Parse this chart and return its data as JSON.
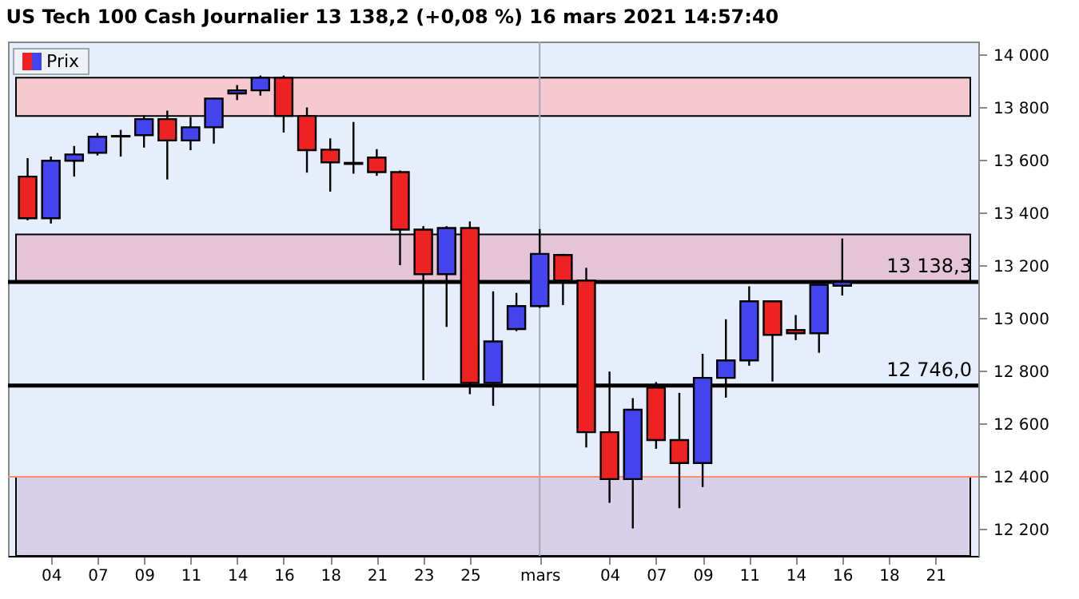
{
  "chart_data": {
    "type": "candlestick",
    "title": "US Tech 100 Cash Journalier 13 138,2 (+0,08 %) 16 mars 2021 14:57:40",
    "categories": [
      null,
      "04",
      null,
      "07",
      null,
      "09",
      null,
      "11",
      null,
      "14",
      null,
      "16",
      null,
      "18",
      null,
      "21",
      null,
      "23",
      null,
      "25",
      null,
      null,
      "mars",
      null,
      null,
      "04",
      null,
      "07",
      null,
      "09",
      null,
      "11",
      null,
      "14",
      null,
      "16",
      null,
      "18",
      null,
      "21",
      null
    ],
    "series": [
      {
        "name": "Prix",
        "ohlc": [
          [
            13538,
            13608,
            13372,
            13380
          ],
          [
            13380,
            13614,
            13360,
            13598
          ],
          [
            13598,
            13654,
            13538,
            13622
          ],
          [
            13628,
            13703,
            13618,
            13689
          ],
          [
            13690,
            13715,
            13614,
            13692
          ],
          [
            13695,
            13770,
            13648,
            13756
          ],
          [
            13756,
            13788,
            13527,
            13675
          ],
          [
            13675,
            13764,
            13638,
            13725
          ],
          [
            13725,
            13836,
            13663,
            13834
          ],
          [
            13853,
            13885,
            13828,
            13865
          ],
          [
            13865,
            13921,
            13845,
            13913
          ],
          [
            13913,
            13921,
            13705,
            13768
          ],
          [
            13768,
            13800,
            13553,
            13638
          ],
          [
            13640,
            13683,
            13481,
            13592
          ],
          [
            13590,
            13745,
            13549,
            13586
          ],
          [
            13610,
            13642,
            13541,
            13555
          ],
          [
            13555,
            13561,
            13202,
            13337
          ],
          [
            13337,
            13350,
            12766,
            13168
          ],
          [
            13168,
            13350,
            12968,
            13343
          ],
          [
            13343,
            13368,
            12713,
            12756
          ],
          [
            12756,
            13103,
            12669,
            12913
          ],
          [
            12960,
            13097,
            12952,
            13047
          ],
          [
            13047,
            13339,
            13040,
            13245
          ],
          [
            13241,
            13245,
            13051,
            13144
          ],
          [
            13144,
            13192,
            12511,
            12569
          ],
          [
            12569,
            12799,
            12301,
            12391
          ],
          [
            12391,
            12698,
            12204,
            12654
          ],
          [
            12738,
            12759,
            12506,
            12539
          ],
          [
            12539,
            12718,
            12281,
            12452
          ],
          [
            12452,
            12866,
            12361,
            12775
          ],
          [
            12775,
            12997,
            12700,
            12841
          ],
          [
            12841,
            13122,
            12821,
            13065
          ],
          [
            13065,
            13067,
            12761,
            12938
          ],
          [
            12956,
            13013,
            12918,
            12944
          ],
          [
            12944,
            13130,
            12870,
            13128
          ],
          [
            13124,
            13303,
            13087,
            13138.3
          ],
          null,
          null,
          null,
          null,
          null
        ],
        "colors": [
          "#ee2222",
          "#4444ee",
          "#4444ee",
          "#4444ee",
          "#4444ee",
          "#4444ee",
          "#ee2222",
          "#4444ee",
          "#4444ee",
          "#4444ee",
          "#4444ee",
          "#ee2222",
          "#ee2222",
          "#ee2222",
          "#ee2222",
          "#ee2222",
          "#ee2222",
          "#ee2222",
          "#4444ee",
          "#ee2222",
          "#4444ee",
          "#4444ee",
          "#4444ee",
          "#ee2222",
          "#ee2222",
          "#ee2222",
          "#4444ee",
          "#ee2222",
          "#ee2222",
          "#4444ee",
          "#4444ee",
          "#4444ee",
          "#ee2222",
          "#ee2222",
          "#4444ee",
          "#4444ee",
          null,
          null,
          null,
          null,
          null
        ]
      }
    ],
    "ylim": [
      12100,
      14050
    ],
    "yticks": [
      {
        "value": 12200,
        "label": "12 200"
      },
      {
        "value": 12400,
        "label": "12 400"
      },
      {
        "value": 12600,
        "label": "12 600"
      },
      {
        "value": 12800,
        "label": "12 800"
      },
      {
        "value": 13000,
        "label": "13 000"
      },
      {
        "value": 13200,
        "label": "13 200"
      },
      {
        "value": 13400,
        "label": "13 400"
      },
      {
        "value": 13600,
        "label": "13 600"
      },
      {
        "value": 13800,
        "label": "13 800"
      },
      {
        "value": 14000,
        "label": "14 000"
      }
    ],
    "bands": [
      {
        "axis": "y",
        "from": 13768,
        "to": 13913,
        "color": "#f6c8d0"
      },
      {
        "axis": "y",
        "from": 13138.3,
        "to": 13319,
        "color": "#e6c4d8"
      },
      {
        "axis": "y",
        "from": 12100,
        "to": 12400,
        "color": "#d8d0e8"
      }
    ],
    "ref_lines": [
      {
        "axis": "y",
        "value": 12746,
        "label": "12 746,0",
        "color": "#000000"
      },
      {
        "axis": "y",
        "value": 12400,
        "color": "#ff8c70"
      },
      {
        "axis": "y",
        "value": 13138.3,
        "label": "13 138,3",
        "color": "#000000"
      },
      {
        "axis": "x",
        "value": "mars",
        "color": "#a0a8b8"
      }
    ],
    "legend": "top left"
  }
}
